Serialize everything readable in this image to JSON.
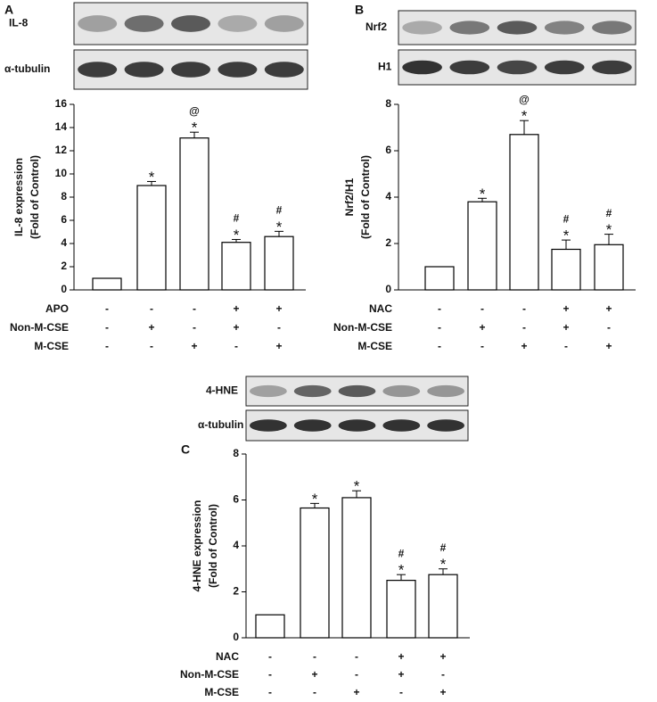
{
  "chart_data": [
    {
      "type": "bar",
      "panel_label": "A",
      "blot_labels": [
        "IL-8",
        "α-tubulin"
      ],
      "y_label": [
        "IL-8 expression",
        "(Fold of Control)"
      ],
      "categories": [
        null,
        null,
        null,
        null,
        null
      ],
      "values": [
        1.0,
        9.0,
        13.1,
        4.1,
        4.6
      ],
      "errors": [
        0,
        0.35,
        0.5,
        0.25,
        0.45
      ],
      "annotations": [
        [],
        [
          "*"
        ],
        [
          "@",
          "*"
        ],
        [
          "#",
          "*"
        ],
        [
          "#",
          "*"
        ]
      ],
      "color": "#ffffff",
      "ylim": [
        0,
        16
      ],
      "yticks": [
        0,
        2,
        4,
        6,
        8,
        10,
        12,
        14,
        16
      ],
      "treatments": [
        {
          "name": "APO",
          "signs": [
            "-",
            "-",
            "-",
            "+",
            "+"
          ]
        },
        {
          "name": "Non-M-CSE",
          "signs": [
            "-",
            "+",
            "-",
            "+",
            "-"
          ]
        },
        {
          "name": "M-CSE",
          "signs": [
            "-",
            "-",
            "+",
            "-",
            "+"
          ]
        }
      ]
    },
    {
      "type": "bar",
      "panel_label": "B",
      "blot_labels": [
        "Nrf2",
        "H1"
      ],
      "y_label": [
        "Nrf2/H1",
        "(Fold of Control)"
      ],
      "categories": [
        null,
        null,
        null,
        null,
        null
      ],
      "values": [
        1.0,
        3.8,
        6.7,
        1.75,
        1.95
      ],
      "errors": [
        0,
        0.15,
        0.6,
        0.4,
        0.45
      ],
      "annotations": [
        [],
        [
          "*"
        ],
        [
          "@",
          "*"
        ],
        [
          "#",
          "*"
        ],
        [
          "#",
          "*"
        ]
      ],
      "color": "#ffffff",
      "ylim": [
        0,
        8
      ],
      "yticks": [
        0,
        2,
        4,
        6,
        8
      ],
      "treatments": [
        {
          "name": "NAC",
          "signs": [
            "-",
            "-",
            "-",
            "+",
            "+"
          ]
        },
        {
          "name": "Non-M-CSE",
          "signs": [
            "-",
            "+",
            "-",
            "+",
            "-"
          ]
        },
        {
          "name": "M-CSE",
          "signs": [
            "-",
            "-",
            "+",
            "-",
            "+"
          ]
        }
      ]
    },
    {
      "type": "bar",
      "panel_label": "C",
      "blot_labels": [
        "4-HNE",
        "α-tubulin"
      ],
      "y_label": [
        "4-HNE expression",
        "(Fold of Control)"
      ],
      "categories": [
        null,
        null,
        null,
        null,
        null
      ],
      "values": [
        1.0,
        5.65,
        6.1,
        2.5,
        2.75
      ],
      "errors": [
        0,
        0.2,
        0.3,
        0.25,
        0.25
      ],
      "annotations": [
        [],
        [
          "*"
        ],
        [
          "*"
        ],
        [
          "#",
          "*"
        ],
        [
          "#",
          "*"
        ]
      ],
      "color": "#ffffff",
      "ylim": [
        0,
        8
      ],
      "yticks": [
        0,
        2,
        4,
        6,
        8
      ],
      "treatments": [
        {
          "name": "NAC",
          "signs": [
            "-",
            "-",
            "-",
            "+",
            "+"
          ]
        },
        {
          "name": "Non-M-CSE",
          "signs": [
            "-",
            "+",
            "-",
            "+",
            "-"
          ]
        },
        {
          "name": "M-CSE",
          "signs": [
            "-",
            "-",
            "+",
            "-",
            "+"
          ]
        }
      ]
    }
  ]
}
